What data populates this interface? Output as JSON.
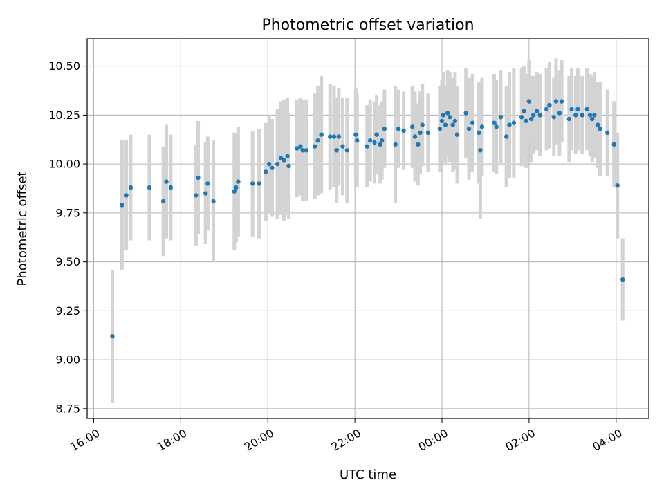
{
  "chart_data": {
    "type": "scatter",
    "title": "Photometric offset variation",
    "xlabel": "UTC time",
    "ylabel": "Photometric offset",
    "x_tick_labels": [
      "16:00",
      "18:00",
      "20:00",
      "22:00",
      "00:00",
      "02:00",
      "04:00"
    ],
    "x_tick_hours": [
      16,
      18,
      20,
      22,
      24,
      26,
      28
    ],
    "x_tick_rotation": 30,
    "y_ticks": [
      8.75,
      9.0,
      9.25,
      9.5,
      9.75,
      10.0,
      10.25,
      10.5
    ],
    "y_tick_labels": [
      "8.75",
      "9.00",
      "9.25",
      "9.50",
      "9.75",
      "10.00",
      "10.25",
      "10.50"
    ],
    "xlim_hours": [
      15.85,
      28.75
    ],
    "ylim": [
      8.7,
      10.64
    ],
    "grid": true,
    "marker_color": "#1f77b4",
    "errorbar_color": "#d3d3d3",
    "note_x_units": "hours UTC; values past 24 are after midnight (24.5 = 00:30)",
    "series": [
      {
        "x": [
          16.43,
          16.65,
          16.75,
          16.85,
          17.28,
          17.6,
          17.67,
          17.77,
          18.35,
          18.4,
          18.57,
          18.62,
          18.75,
          19.23,
          19.27,
          19.32,
          19.65,
          19.8,
          19.95,
          20.03,
          20.1,
          20.22,
          20.3,
          20.37,
          20.45,
          20.48,
          20.67,
          20.75,
          20.8,
          20.88,
          21.08,
          21.15,
          21.23,
          21.43,
          21.52,
          21.58,
          21.63,
          21.72,
          21.82,
          22.02,
          22.05,
          22.28,
          22.35,
          22.45,
          22.5,
          22.58,
          22.62,
          22.68,
          22.93,
          23.0,
          23.12,
          23.32,
          23.38,
          23.45,
          23.5,
          23.55,
          23.68,
          23.95,
          24.0,
          24.03,
          24.08,
          24.13,
          24.18,
          24.25,
          24.3,
          24.35,
          24.55,
          24.62,
          24.7,
          24.85,
          24.88,
          24.92,
          25.2,
          25.25,
          25.35,
          25.48,
          25.55,
          25.65,
          25.83,
          25.88,
          25.93,
          26.0,
          26.05,
          26.1,
          26.18,
          26.25,
          26.4,
          26.47,
          26.57,
          26.62,
          26.7,
          26.75,
          26.92,
          26.98,
          27.07,
          27.12,
          27.22,
          27.33,
          27.4,
          27.45,
          27.5,
          27.58,
          27.63,
          27.8,
          27.95,
          28.03,
          28.15
        ],
        "y": [
          9.12,
          9.79,
          9.84,
          9.88,
          9.88,
          9.81,
          9.91,
          9.88,
          9.84,
          9.93,
          9.85,
          9.9,
          9.81,
          9.86,
          9.88,
          9.91,
          9.9,
          9.9,
          9.96,
          10.0,
          9.98,
          10.0,
          10.03,
          10.02,
          10.04,
          9.99,
          10.08,
          10.09,
          10.07,
          10.07,
          10.09,
          10.12,
          10.15,
          10.14,
          10.14,
          10.07,
          10.14,
          10.09,
          10.07,
          10.15,
          10.12,
          10.09,
          10.12,
          10.11,
          10.15,
          10.1,
          10.12,
          10.18,
          10.1,
          10.18,
          10.17,
          10.19,
          10.14,
          10.1,
          10.16,
          10.2,
          10.16,
          10.18,
          10.22,
          10.25,
          10.2,
          10.26,
          10.24,
          10.2,
          10.22,
          10.15,
          10.26,
          10.18,
          10.21,
          10.16,
          10.07,
          10.19,
          10.21,
          10.19,
          10.24,
          10.14,
          10.2,
          10.21,
          10.24,
          10.27,
          10.22,
          10.32,
          10.23,
          10.25,
          10.27,
          10.25,
          10.28,
          10.3,
          10.24,
          10.32,
          10.26,
          10.32,
          10.23,
          10.28,
          10.25,
          10.28,
          10.25,
          10.28,
          10.25,
          10.23,
          10.25,
          10.2,
          10.18,
          10.16,
          10.1,
          9.89,
          9.41
        ],
        "err": [
          0.34,
          0.33,
          0.28,
          0.27,
          0.27,
          0.28,
          0.29,
          0.27,
          0.26,
          0.29,
          0.26,
          0.24,
          0.31,
          0.3,
          0.28,
          0.28,
          0.27,
          0.28,
          0.25,
          0.25,
          0.25,
          0.28,
          0.29,
          0.31,
          0.3,
          0.27,
          0.25,
          0.25,
          0.26,
          0.26,
          0.27,
          0.28,
          0.3,
          0.27,
          0.26,
          0.27,
          0.25,
          0.25,
          0.27,
          0.24,
          0.24,
          0.21,
          0.21,
          0.21,
          0.2,
          0.2,
          0.2,
          0.2,
          0.3,
          0.2,
          0.2,
          0.21,
          0.23,
          0.21,
          0.21,
          0.21,
          0.2,
          0.22,
          0.21,
          0.22,
          0.2,
          0.22,
          0.23,
          0.24,
          0.25,
          0.25,
          0.23,
          0.26,
          0.25,
          0.26,
          0.35,
          0.25,
          0.25,
          0.24,
          0.24,
          0.26,
          0.27,
          0.28,
          0.25,
          0.23,
          0.24,
          0.21,
          0.22,
          0.2,
          0.2,
          0.21,
          0.21,
          0.22,
          0.2,
          0.22,
          0.22,
          0.21,
          0.22,
          0.21,
          0.2,
          0.21,
          0.2,
          0.21,
          0.21,
          0.22,
          0.22,
          0.22,
          0.24,
          0.22,
          0.22,
          0.27,
          0.21
        ]
      }
    ]
  }
}
